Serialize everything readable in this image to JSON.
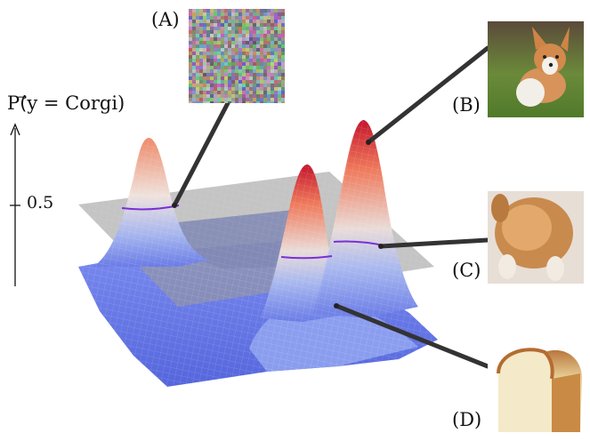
{
  "axis": {
    "label": "P(⃗y = Corgi)",
    "tick_label": "0.5"
  },
  "callouts": [
    {
      "id": "A",
      "label": "(A)"
    },
    {
      "id": "B",
      "label": "(B)"
    },
    {
      "id": "C",
      "label": "(C)"
    },
    {
      "id": "D",
      "label": "(D)"
    }
  ],
  "colors": {
    "surface_low": "#5b6fe0",
    "surface_mid": "#dfe4f2",
    "surface_high": "#c4152c",
    "plane": "#9a9a9a",
    "contour": "#7a2fd6",
    "leader": "#333333"
  }
}
